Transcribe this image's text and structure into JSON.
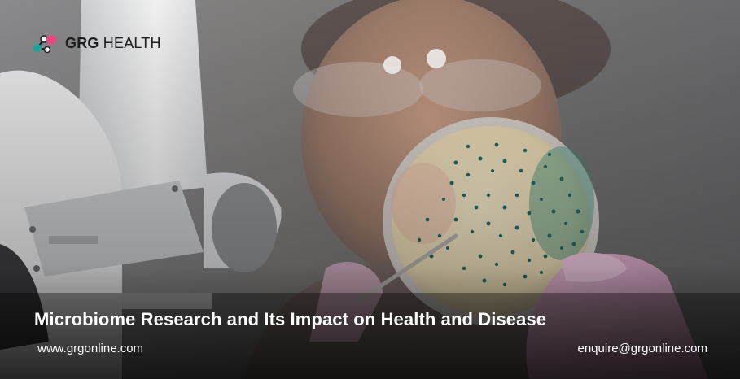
{
  "logo": {
    "brand_bold": "GRG",
    "brand_rest": " HEALTH",
    "colors": {
      "pink": "#e8477f",
      "teal": "#1aa79a",
      "dark": "#1d1d1d"
    }
  },
  "photo": {
    "icon": "petri-dish-photo",
    "colors": {
      "background": "#6e6e70",
      "glove": "#d9a4c4",
      "agar": "#efe3c4",
      "colony": "#1f6c6a"
    }
  },
  "caption": {
    "title": "Microbiome Research and Its Impact on Health and Disease",
    "website": "www.grgonline.com",
    "email": "enquire@grgonline.com"
  }
}
